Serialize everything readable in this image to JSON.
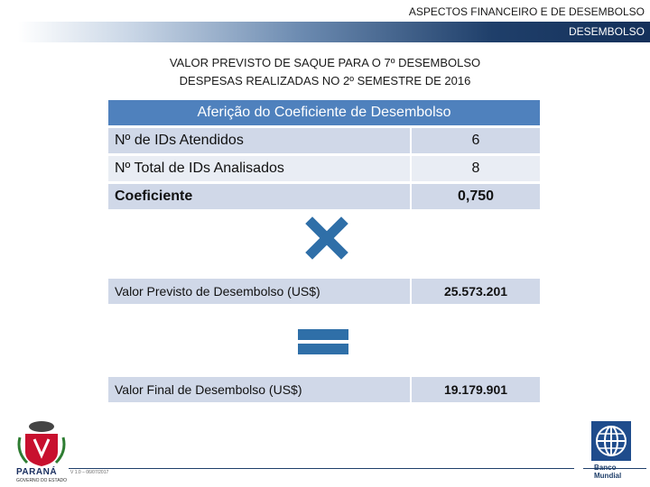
{
  "header": {
    "title": "ASPECTOS FINANCEIRO E DE DESEMBOLSO",
    "band_label": "DESEMBOLSO"
  },
  "headings": {
    "line1": "VALOR PREVISTO DE SAQUE PARA O 7º DESEMBOLSO",
    "line2": "DESPESAS REALIZADAS NO 2º SEMESTRE DE 2016"
  },
  "table": {
    "title": "Aferição do Coeficiente de Desembolso",
    "rows": [
      {
        "label": "Nº de IDs Atendidos",
        "value": "6"
      },
      {
        "label": "Nº Total de IDs Analisados",
        "value": "8"
      },
      {
        "label": "Coeficiente",
        "value": "0,750"
      }
    ]
  },
  "values": {
    "previsto_label": "Valor Previsto de Desembolso (US$)",
    "previsto_value": "25.573.201",
    "final_label": "Valor Final de Desembolso (US$)",
    "final_value": "19.179.901"
  },
  "footer": {
    "parana": "PARANÁ",
    "parana_sub": "GOVERNO DO ESTADO",
    "version": "V 1.0 – 06/07/2017",
    "bank_line1": "Banco",
    "bank_line2": "Mundial"
  },
  "colors": {
    "header_blue": "#4f81bd",
    "row_light": "#d0d8e8",
    "row_lighter": "#e9edf4",
    "operator_blue": "#2f6fa8"
  }
}
